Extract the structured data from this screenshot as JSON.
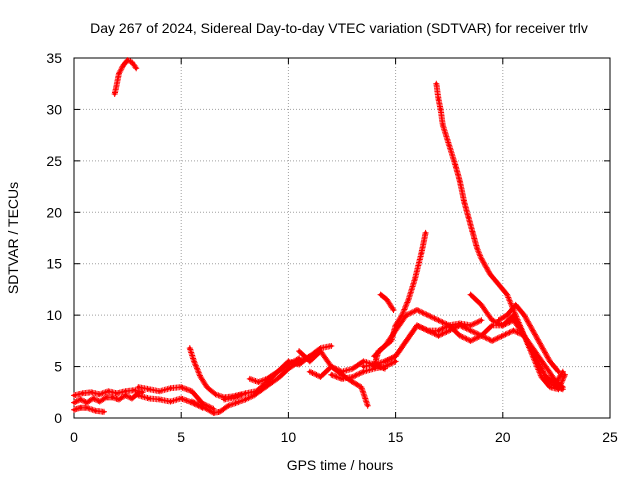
{
  "chart_data": {
    "type": "scatter",
    "title": "Day 267 of 2024, Sidereal Day-to-day VTEC variation (SDTVAR) for receiver trlv",
    "xlabel": "GPS time / hours",
    "ylabel": "SDTVAR / TECUs",
    "xlim": [
      0,
      25
    ],
    "ylim": [
      0,
      35
    ],
    "xticks": [
      "0",
      "5",
      "10",
      "15",
      "20",
      "25"
    ],
    "yticks": [
      "0",
      "5",
      "10",
      "15",
      "20",
      "25",
      "30",
      "35"
    ],
    "grid": true,
    "marker": "plus",
    "series_color": "#ff0000",
    "series": [
      {
        "x": [
          0.0,
          0.3,
          0.6,
          0.9,
          1.2,
          1.5,
          1.8,
          2.1,
          2.4,
          2.7,
          3.0
        ],
        "y": [
          1.5,
          1.8,
          1.5,
          1.9,
          1.6,
          2.0,
          2.0,
          1.8,
          2.2,
          1.9,
          2.4
        ]
      },
      {
        "x": [
          0.0,
          0.4,
          0.8,
          1.2,
          1.6,
          2.0,
          2.4,
          2.8,
          3.2
        ],
        "y": [
          2.2,
          2.4,
          2.5,
          2.3,
          2.6,
          2.4,
          2.6,
          2.7,
          2.5
        ]
      },
      {
        "x": [
          0.0,
          0.3,
          0.6,
          1.0,
          1.4
        ],
        "y": [
          0.8,
          1.0,
          1.0,
          0.7,
          0.6
        ]
      },
      {
        "x": [
          1.9,
          2.1,
          2.3,
          2.5,
          2.7,
          2.9
        ],
        "y": [
          31.5,
          33.5,
          34.3,
          34.8,
          34.6,
          34.0
        ]
      },
      {
        "x": [
          3.0,
          3.5,
          4.0,
          4.5,
          5.0,
          5.5,
          6.0,
          6.5
        ],
        "y": [
          3.0,
          2.8,
          2.6,
          2.9,
          3.0,
          2.6,
          1.4,
          0.9
        ]
      },
      {
        "x": [
          3.0,
          3.5,
          4.0,
          4.5,
          5.0,
          5.5,
          6.0
        ],
        "y": [
          2.2,
          1.9,
          1.8,
          1.6,
          1.9,
          1.5,
          1.0
        ]
      },
      {
        "x": [
          5.4,
          5.6,
          5.9,
          6.2,
          6.6,
          7.0,
          7.4,
          7.8
        ],
        "y": [
          6.8,
          5.5,
          4.0,
          3.0,
          2.3,
          2.0,
          2.1,
          2.3
        ]
      },
      {
        "x": [
          5.5,
          6.0,
          6.5,
          6.8,
          7.2,
          7.6,
          8.0,
          8.4,
          8.8,
          9.2,
          9.6,
          10.0,
          10.5,
          11.0
        ],
        "y": [
          1.6,
          1.1,
          0.5,
          0.6,
          1.2,
          1.5,
          1.8,
          2.2,
          2.8,
          3.4,
          4.0,
          4.8,
          5.5,
          6.0
        ]
      },
      {
        "x": [
          7.0,
          7.5,
          8.0,
          8.5,
          9.0,
          9.5,
          10.0,
          10.5
        ],
        "y": [
          1.8,
          2.0,
          2.4,
          2.6,
          3.5,
          4.5,
          5.2,
          5.8
        ]
      },
      {
        "x": [
          8.2,
          8.6,
          9.0,
          9.5,
          10.0,
          10.5,
          11.0,
          11.5,
          12.0
        ],
        "y": [
          3.8,
          3.5,
          3.8,
          4.5,
          5.5,
          5.2,
          6.0,
          6.8,
          7.0
        ]
      },
      {
        "x": [
          10.5,
          11.0,
          11.5,
          12.0,
          12.5,
          13.0,
          13.5,
          14.0,
          14.5
        ],
        "y": [
          6.5,
          5.5,
          6.5,
          5.0,
          4.5,
          4.8,
          5.5,
          5.2,
          4.8
        ]
      },
      {
        "x": [
          11.0,
          11.5,
          12.0,
          12.5,
          13.0,
          13.4,
          13.7
        ],
        "y": [
          4.5,
          4.0,
          5.0,
          4.2,
          3.5,
          3.0,
          1.2
        ]
      },
      {
        "x": [
          12.0,
          12.5,
          13.0,
          13.5,
          14.0,
          14.5,
          15.0
        ],
        "y": [
          4.2,
          3.8,
          4.0,
          4.5,
          4.8,
          5.0,
          5.5
        ]
      },
      {
        "x": [
          13.5,
          14.0,
          14.5,
          15.0,
          15.5,
          16.0,
          16.5,
          17.0,
          17.5,
          18.0,
          18.5,
          19.0,
          19.5,
          20.0,
          20.5,
          21.0,
          21.5,
          22.0,
          22.5,
          22.8
        ],
        "y": [
          5.0,
          5.2,
          5.5,
          6.0,
          7.5,
          9.0,
          8.5,
          8.0,
          8.5,
          9.0,
          8.5,
          8.0,
          7.5,
          8.0,
          8.5,
          8.0,
          6.0,
          4.0,
          3.0,
          2.8
        ]
      },
      {
        "x": [
          14.5,
          15.0,
          15.5,
          16.0,
          16.5,
          17.0,
          17.5,
          18.0,
          18.5,
          19.0
        ],
        "y": [
          5.5,
          6.0,
          7.5,
          9.0,
          8.5,
          8.5,
          9.0,
          9.2,
          9.0,
          9.5
        ]
      },
      {
        "x": [
          14.0,
          14.5,
          15.0,
          15.5,
          16.0,
          16.5,
          17.0,
          17.5,
          18.0,
          18.5,
          19.0,
          19.5,
          20.0,
          20.5,
          21.0,
          21.5,
          22.0,
          22.5,
          22.8
        ],
        "y": [
          6.0,
          7.0,
          8.5,
          10.0,
          10.5,
          10.0,
          9.5,
          9.0,
          8.0,
          7.5,
          8.0,
          9.0,
          9.0,
          10.0,
          8.0,
          6.5,
          5.0,
          3.5,
          3.0
        ]
      },
      {
        "x": [
          14.0,
          14.2,
          14.5,
          14.8,
          15.0,
          15.3,
          15.6,
          15.9,
          16.2,
          16.4
        ],
        "y": [
          5.0,
          6.5,
          7.0,
          7.5,
          9.0,
          10.0,
          11.5,
          13.5,
          16.0,
          18.0
        ]
      },
      {
        "x": [
          14.3,
          14.6,
          14.9
        ],
        "y": [
          12.0,
          11.5,
          10.5
        ]
      },
      {
        "x": [
          16.9,
          17.0,
          17.1,
          17.2,
          17.5,
          17.8,
          18.0,
          18.2,
          18.4,
          18.6,
          18.8,
          19.0,
          19.4,
          19.8,
          20.2,
          20.6,
          21.0,
          21.4,
          21.8,
          22.2,
          22.6,
          22.9
        ],
        "y": [
          32.5,
          31.0,
          30.0,
          28.5,
          26.5,
          24.5,
          23.0,
          21.0,
          19.5,
          18.0,
          16.5,
          15.5,
          14.0,
          13.0,
          12.0,
          10.0,
          8.0,
          6.0,
          4.0,
          3.0,
          2.8,
          4.2
        ]
      },
      {
        "x": [
          18.5,
          19.0,
          19.5,
          20.0,
          20.5,
          21.0,
          21.5,
          22.0,
          22.5,
          22.8
        ],
        "y": [
          12.0,
          11.0,
          9.5,
          9.0,
          9.5,
          8.0,
          6.0,
          4.0,
          3.5,
          4.5
        ]
      },
      {
        "x": [
          19.8,
          20.2,
          20.6,
          21.0,
          21.4,
          21.8,
          22.2,
          22.6
        ],
        "y": [
          9.5,
          10.0,
          11.0,
          10.0,
          8.5,
          7.0,
          5.5,
          4.5
        ]
      }
    ]
  }
}
